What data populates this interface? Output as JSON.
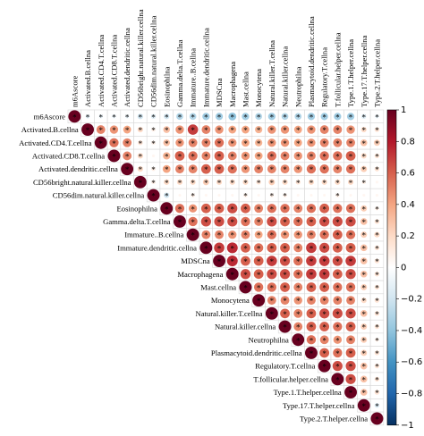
{
  "chart_data": {
    "type": "corrplot",
    "variables": [
      "m6Ascore",
      "Activated.B.cellna",
      "Activated.CD4.T.cellna",
      "Activated.CD8.T.cellna",
      "Activated.dendritic.cellna",
      "CD56bright.natural.killer.cellna",
      "CD56dim.natural.killer.cellna",
      "Eosinophilna",
      "Gamma.delta.T.cellna",
      "Immature..B.cellna",
      "Immature.dendritic.cellna",
      "MDSCna",
      "Macrophagena",
      "Mast.cellna",
      "Monocytena",
      "Natural.killer.T.cellna",
      "Natural.killer.cellna",
      "Neutrophilna",
      "Plasmacytoid.dendritic.cellna",
      "Regulatory.T.cellna",
      "T.follicular.helper.cellna",
      "Type.1.T.helper.cellna",
      "Type.17.T.helper.cellna",
      "Type.2.T.helper.cellna"
    ],
    "values": [
      [
        1,
        -0.12,
        -0.1,
        -0.1,
        -0.1,
        -0.2,
        -0.15,
        -0.2,
        -0.3,
        -0.3,
        -0.35,
        -0.35,
        -0.4,
        -0.35,
        -0.3,
        -0.35,
        -0.3,
        -0.3,
        -0.35,
        -0.35,
        -0.35,
        -0.35,
        -0.15,
        -0.1
      ],
      [
        1,
        0.5,
        0.45,
        0.4,
        0.2,
        0.1,
        0.3,
        0.45,
        0.7,
        0.5,
        0.45,
        0.4,
        0.4,
        0.35,
        0.45,
        0.45,
        0.4,
        0.45,
        0.5,
        0.5,
        0.45,
        0.2,
        0.15
      ],
      [
        1,
        0.55,
        0.5,
        0.15,
        0.1,
        0.3,
        0.45,
        0.5,
        0.5,
        0.55,
        0.45,
        0.4,
        0.35,
        0.45,
        0.45,
        0.4,
        0.45,
        0.5,
        0.5,
        0.5,
        0.3,
        0.25
      ],
      [
        1,
        0.5,
        0.2,
        0.05,
        0.35,
        0.6,
        0.55,
        0.5,
        0.6,
        0.5,
        0.45,
        0.4,
        0.55,
        0.5,
        0.45,
        0.5,
        0.55,
        0.55,
        0.6,
        0.2,
        0.15
      ],
      [
        1,
        0.2,
        0.1,
        0.4,
        0.5,
        0.5,
        0.6,
        0.6,
        0.55,
        0.45,
        0.5,
        0.5,
        0.5,
        0.45,
        0.55,
        0.55,
        0.5,
        0.55,
        0.25,
        0.15
      ],
      [
        1,
        0.1,
        0.2,
        0.2,
        0.2,
        0.25,
        0.2,
        0.2,
        0.2,
        0.15,
        0.25,
        0.2,
        0.15,
        0.2,
        0.2,
        0.2,
        0.2,
        0.1,
        0.05
      ],
      [
        1,
        -0.2,
        0.05,
        0.1,
        0.05,
        0.05,
        0.05,
        0.1,
        0.05,
        0.1,
        0.1,
        0.05,
        0.05,
        0.05,
        0.1,
        0.05,
        0.05,
        0.05
      ],
      [
        1,
        0.55,
        0.45,
        0.6,
        0.6,
        0.65,
        0.6,
        0.5,
        0.55,
        0.55,
        0.5,
        0.55,
        0.6,
        0.55,
        0.55,
        0.25,
        0.1
      ],
      [
        1,
        0.55,
        0.65,
        0.65,
        0.65,
        0.55,
        0.5,
        0.65,
        0.6,
        0.55,
        0.6,
        0.65,
        0.65,
        0.65,
        0.3,
        0.15
      ],
      [
        1,
        0.5,
        0.5,
        0.45,
        0.5,
        0.4,
        0.55,
        0.45,
        0.45,
        0.5,
        0.55,
        0.6,
        0.55,
        0.25,
        0.2
      ],
      [
        1,
        0.7,
        0.75,
        0.6,
        0.55,
        0.6,
        0.6,
        0.5,
        0.7,
        0.65,
        0.6,
        0.6,
        0.3,
        0.15
      ],
      [
        1,
        0.75,
        0.6,
        0.6,
        0.7,
        0.65,
        0.55,
        0.7,
        0.7,
        0.65,
        0.7,
        0.3,
        0.15
      ],
      [
        1,
        0.65,
        0.6,
        0.65,
        0.65,
        0.55,
        0.7,
        0.7,
        0.6,
        0.65,
        0.3,
        0.15
      ],
      [
        1,
        0.55,
        0.55,
        0.6,
        0.5,
        0.6,
        0.6,
        0.55,
        0.55,
        0.25,
        0.15
      ],
      [
        1,
        0.5,
        0.5,
        0.45,
        0.5,
        0.5,
        0.5,
        0.5,
        0.2,
        0.15
      ],
      [
        1,
        0.6,
        0.5,
        0.6,
        0.65,
        0.65,
        0.65,
        0.3,
        0.15
      ],
      [
        1,
        0.5,
        0.6,
        0.6,
        0.55,
        0.6,
        0.25,
        0.15
      ],
      [
        1,
        0.55,
        0.5,
        0.45,
        0.5,
        0.25,
        0.1
      ],
      [
        1,
        0.6,
        0.55,
        0.6,
        0.25,
        0.15
      ],
      [
        1,
        0.65,
        0.65,
        0.3,
        0.15
      ],
      [
        1,
        0.65,
        0.3,
        0.15
      ],
      [
        1,
        0.3,
        0.15
      ],
      [
        1,
        -0.15
      ],
      [
        1
      ]
    ],
    "stars": [
      [
        true,
        true,
        true,
        true,
        true,
        true,
        true,
        true,
        true,
        true,
        true,
        true,
        true,
        true,
        true,
        true,
        true,
        true,
        true,
        true,
        true,
        true,
        true,
        true
      ],
      [
        true,
        true,
        true,
        true,
        true,
        true,
        true,
        true,
        true,
        true,
        true,
        true,
        true,
        true,
        true,
        true,
        true,
        true,
        true,
        true,
        true,
        true,
        true
      ],
      [
        true,
        true,
        true,
        true,
        true,
        true,
        true,
        true,
        true,
        true,
        true,
        true,
        true,
        true,
        true,
        true,
        true,
        true,
        true,
        true,
        true,
        true
      ],
      [
        true,
        true,
        true,
        false,
        true,
        true,
        true,
        true,
        true,
        true,
        true,
        true,
        true,
        true,
        true,
        true,
        true,
        true,
        true,
        true,
        true
      ],
      [
        true,
        true,
        true,
        true,
        true,
        true,
        true,
        true,
        true,
        true,
        true,
        true,
        true,
        true,
        true,
        true,
        true,
        true,
        true,
        true
      ],
      [
        true,
        true,
        true,
        true,
        true,
        true,
        true,
        true,
        true,
        true,
        true,
        true,
        true,
        true,
        true,
        true,
        true,
        true,
        false
      ],
      [
        true,
        true,
        false,
        true,
        false,
        false,
        false,
        true,
        false,
        true,
        true,
        false,
        false,
        false,
        true,
        false,
        false,
        false
      ],
      [
        true,
        true,
        true,
        true,
        true,
        true,
        true,
        true,
        true,
        true,
        true,
        true,
        true,
        true,
        true,
        true,
        true
      ],
      [
        true,
        true,
        true,
        true,
        true,
        true,
        true,
        true,
        true,
        true,
        true,
        true,
        true,
        true,
        true,
        true
      ],
      [
        true,
        true,
        true,
        true,
        true,
        true,
        true,
        true,
        true,
        true,
        true,
        true,
        true,
        true,
        true
      ],
      [
        true,
        true,
        true,
        true,
        true,
        true,
        true,
        true,
        true,
        true,
        true,
        true,
        true,
        true
      ],
      [
        true,
        true,
        true,
        true,
        true,
        true,
        true,
        true,
        true,
        true,
        true,
        true,
        true
      ],
      [
        true,
        true,
        true,
        true,
        true,
        true,
        true,
        true,
        true,
        true,
        true,
        true
      ],
      [
        true,
        true,
        true,
        true,
        true,
        true,
        true,
        true,
        true,
        true,
        true
      ],
      [
        true,
        true,
        true,
        true,
        true,
        true,
        true,
        true,
        true,
        true
      ],
      [
        true,
        true,
        true,
        true,
        true,
        true,
        true,
        true,
        true
      ],
      [
        true,
        true,
        true,
        true,
        true,
        true,
        true,
        true
      ],
      [
        true,
        true,
        true,
        true,
        true,
        true,
        true
      ],
      [
        true,
        true,
        true,
        true,
        true,
        true
      ],
      [
        true,
        true,
        true,
        true,
        true
      ],
      [
        true,
        true,
        true,
        true
      ],
      [
        true,
        true,
        true
      ],
      [
        true,
        true
      ],
      [
        true
      ]
    ],
    "star": "*",
    "clim": [
      -1,
      1
    ],
    "colormap": [
      "#053061",
      "#2166ac",
      "#4393c3",
      "#92c5de",
      "#d1e5f0",
      "#ffffff",
      "#fddbc7",
      "#f4a582",
      "#d6604d",
      "#b2182b",
      "#67001f"
    ],
    "colorbar_ticks": [
      1,
      0.8,
      0.6,
      0.4,
      0.2,
      0,
      {
        "value": -0.2,
        "label": "−0.2"
      },
      {
        "value": -0.4,
        "label": "−0.4"
      },
      {
        "value": -0.6,
        "label": "−0.6"
      },
      {
        "value": -0.8,
        "label": "−0.8"
      },
      {
        "value": -1,
        "label": "−1"
      }
    ]
  }
}
